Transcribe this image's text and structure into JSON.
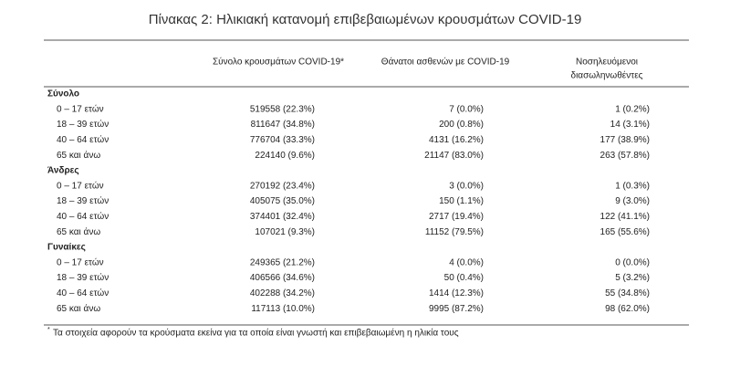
{
  "title": "Πίνακας 2: Ηλικιακή κατανομή επιβεβαιωμένων κρουσμάτων COVID-19",
  "columns": [
    {
      "lines": [
        "Σύνολο κρουσμάτων COVID-19*"
      ]
    },
    {
      "lines": [
        "Θάνατοι ασθενών με COVID-19"
      ]
    },
    {
      "lines": [
        "Νοσηλευόμενοι",
        "διασωληνωθέντες"
      ]
    }
  ],
  "groups": [
    {
      "name": "Σύνολο",
      "rows": [
        {
          "label": "0 – 17 ετών",
          "cells": [
            "519558 (22.3%)",
            "7 (0.0%)",
            "1 (0.2%)"
          ]
        },
        {
          "label": "18 – 39 ετών",
          "cells": [
            "811647 (34.8%)",
            "200 (0.8%)",
            "14 (3.1%)"
          ]
        },
        {
          "label": "40 – 64 ετών",
          "cells": [
            "776704 (33.3%)",
            "4131 (16.2%)",
            "177 (38.9%)"
          ]
        },
        {
          "label": "65 και άνω",
          "cells": [
            "224140 (9.6%)",
            "21147 (83.0%)",
            "263 (57.8%)"
          ]
        }
      ]
    },
    {
      "name": "Άνδρες",
      "rows": [
        {
          "label": "0 – 17 ετών",
          "cells": [
            "270192 (23.4%)",
            "3 (0.0%)",
            "1 (0.3%)"
          ]
        },
        {
          "label": "18 – 39 ετών",
          "cells": [
            "405075 (35.0%)",
            "150 (1.1%)",
            "9 (3.0%)"
          ]
        },
        {
          "label": "40 – 64 ετών",
          "cells": [
            "374401 (32.4%)",
            "2717 (19.4%)",
            "122 (41.1%)"
          ]
        },
        {
          "label": "65 και άνω",
          "cells": [
            "107021 (9.3%)",
            "11152 (79.5%)",
            "165 (55.6%)"
          ]
        }
      ]
    },
    {
      "name": "Γυναίκες",
      "rows": [
        {
          "label": "0 – 17 ετών",
          "cells": [
            "249365 (21.2%)",
            "4 (0.0%)",
            "0 (0.0%)"
          ]
        },
        {
          "label": "18 – 39 ετών",
          "cells": [
            "406566 (34.6%)",
            "50 (0.4%)",
            "5 (3.2%)"
          ]
        },
        {
          "label": "40 – 64 ετών",
          "cells": [
            "402288 (34.2%)",
            "1414 (12.3%)",
            "55 (34.8%)"
          ]
        },
        {
          "label": "65 και άνω",
          "cells": [
            "117113 (10.0%)",
            "9995 (87.2%)",
            "98 (62.0%)"
          ]
        }
      ]
    }
  ],
  "footnote": {
    "marker": "*",
    "text": "Τα στοιχεία αφορούν τα κρούσματα εκείνα για τα οποία είναι γνωστή και επιβεβαιωμένη η ηλικία τους"
  }
}
